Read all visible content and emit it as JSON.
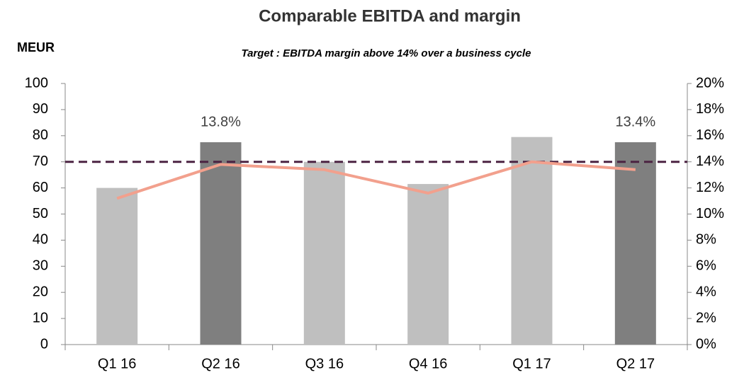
{
  "chart_data": {
    "type": "bar",
    "title": "Comparable EBITDA  and margin",
    "subtitle": "Target : EBITDA margin above 14% over a business cycle",
    "y_label": "MEUR",
    "categories": [
      "Q1 16",
      "Q2 16",
      "Q3 16",
      "Q4 16",
      "Q1 17",
      "Q2 17"
    ],
    "series": [
      {
        "type": "bar",
        "axis": "y",
        "values": [
          60,
          77.5,
          70,
          61.5,
          79.5,
          77.5
        ],
        "colors": [
          "#bfbfbf",
          "#7f7f7f",
          "#bfbfbf",
          "#bfbfbf",
          "#bfbfbf",
          "#7f7f7f"
        ]
      },
      {
        "type": "line",
        "axis": "y2",
        "color": "#f2a08d",
        "values": [
          11.2,
          13.8,
          13.4,
          11.6,
          14.0,
          13.4
        ],
        "value_labels": [
          null,
          "13.8%",
          null,
          null,
          null,
          "13.4%"
        ]
      }
    ],
    "target_line": {
      "axis": "y2",
      "value": 14,
      "color": "#4b2342"
    },
    "ylim": [
      0,
      100
    ],
    "yticks": [
      0,
      10,
      20,
      30,
      40,
      50,
      60,
      70,
      80,
      90,
      100
    ],
    "y2lim": [
      0,
      20
    ],
    "y2ticks": [
      {
        "value": 0,
        "label": "0%"
      },
      {
        "value": 2,
        "label": "2%"
      },
      {
        "value": 4,
        "label": "4%"
      },
      {
        "value": 6,
        "label": "6%"
      },
      {
        "value": 8,
        "label": "8%"
      },
      {
        "value": 10,
        "label": "10%"
      },
      {
        "value": 12,
        "label": "12%"
      },
      {
        "value": 14,
        "label": "14%"
      },
      {
        "value": 16,
        "label": "16%"
      },
      {
        "value": 18,
        "label": "18%"
      },
      {
        "value": 20,
        "label": "20%"
      }
    ]
  }
}
